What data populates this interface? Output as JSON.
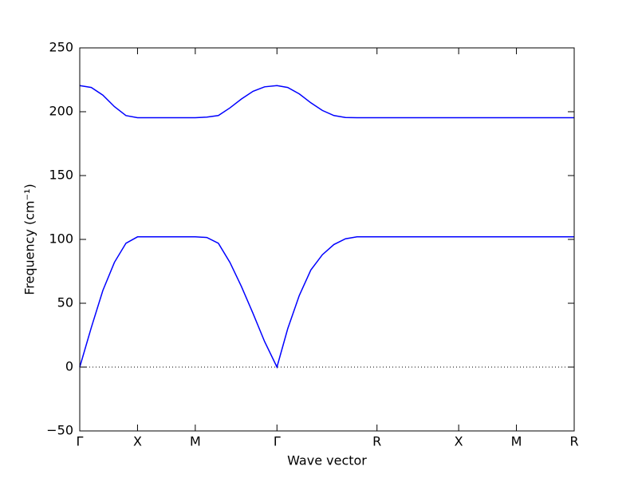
{
  "chart_data": {
    "type": "line",
    "xlabel": "Wave vector",
    "ylabel": "Frequency (cm⁻¹)",
    "x": [
      0,
      0.1,
      0.2,
      0.3,
      0.4,
      0.5,
      0.75,
      1.0,
      1.1,
      1.2,
      1.3,
      1.4,
      1.5,
      1.6,
      1.707,
      1.8,
      1.9,
      2.0,
      2.1,
      2.2,
      2.3,
      2.4,
      2.573,
      3.28,
      3.78,
      4.28
    ],
    "series": [
      {
        "color": "#0000ff",
        "values": [
          0,
          31,
          60,
          82,
          97,
          102,
          102,
          102,
          101.5,
          97,
          82,
          63,
          42,
          20,
          0,
          30,
          56,
          76,
          88,
          96,
          100.5,
          102,
          102,
          102,
          102,
          102
        ]
      },
      {
        "color": "#0000ff",
        "values": [
          220.5,
          219,
          213,
          204,
          197,
          195.3,
          195.3,
          195.3,
          195.8,
          197,
          203,
          210,
          216,
          219.5,
          220.5,
          219,
          214,
          207,
          201,
          197,
          195.5,
          195.3,
          195.3,
          195.3,
          195.3,
          195.3
        ]
      }
    ],
    "xlim": [
      0,
      4.28
    ],
    "xticks": [
      {
        "value": 0,
        "label": "Γ"
      },
      {
        "value": 0.5,
        "label": "X"
      },
      {
        "value": 1.0,
        "label": "M"
      },
      {
        "value": 1.707,
        "label": "Γ"
      },
      {
        "value": 2.573,
        "label": "R"
      },
      {
        "value": 3.28,
        "label": "X"
      },
      {
        "value": 3.78,
        "label": "M"
      },
      {
        "value": 4.28,
        "label": "R"
      }
    ],
    "ylim": [
      -50,
      250
    ],
    "yticks": [
      {
        "value": -50,
        "label": "−50"
      },
      0,
      50,
      100,
      150,
      200,
      250
    ],
    "zero_line": true,
    "grid": false
  }
}
